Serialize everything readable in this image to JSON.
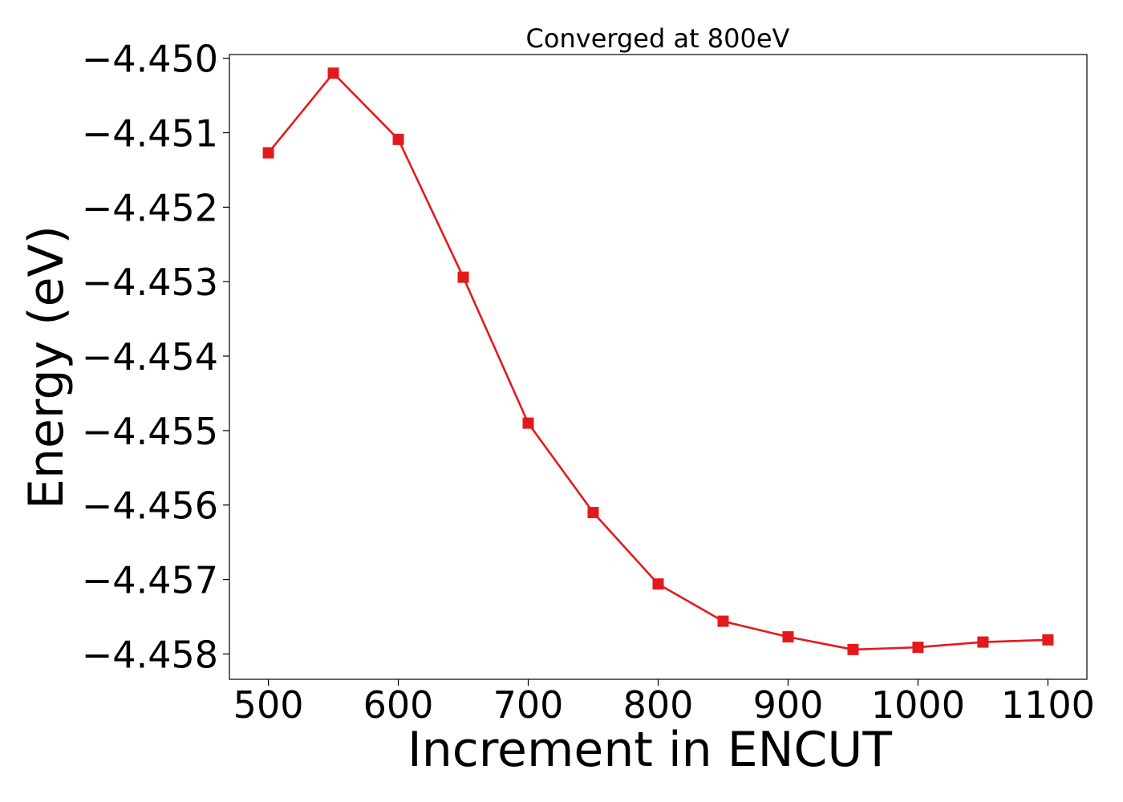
{
  "chart_data": {
    "type": "line",
    "title": "Converged at 800eV",
    "xlabel": "Increment in ENCUT",
    "ylabel": "Energy (eV)",
    "x": [
      500,
      550,
      600,
      650,
      700,
      750,
      800,
      850,
      900,
      950,
      1000,
      1050,
      1100
    ],
    "series": [
      {
        "values": [
          -4.45127,
          -4.4502,
          -4.45109,
          -4.45294,
          -4.4549,
          -4.4561,
          -4.45706,
          -4.45756,
          -4.45777,
          -4.45794,
          -4.45791,
          -4.45784,
          -4.45781
        ],
        "color": "#e31a1c",
        "marker": "square"
      }
    ],
    "xticks": [
      500,
      600,
      700,
      800,
      900,
      1000,
      1100
    ],
    "xtick_labels": [
      "500",
      "600",
      "700",
      "800",
      "900",
      "1000",
      "1100"
    ],
    "yticks": [
      -4.45,
      -4.451,
      -4.452,
      -4.453,
      -4.454,
      -4.455,
      -4.456,
      -4.457,
      -4.458
    ],
    "ytick_labels": [
      "−4.450",
      "−4.451",
      "−4.452",
      "−4.453",
      "−4.454",
      "−4.455",
      "−4.456",
      "−4.457",
      "−4.458"
    ],
    "xlim": [
      470,
      1130
    ],
    "ylim": [
      -4.45834,
      -4.44995
    ],
    "grid": false,
    "legend": false
  }
}
